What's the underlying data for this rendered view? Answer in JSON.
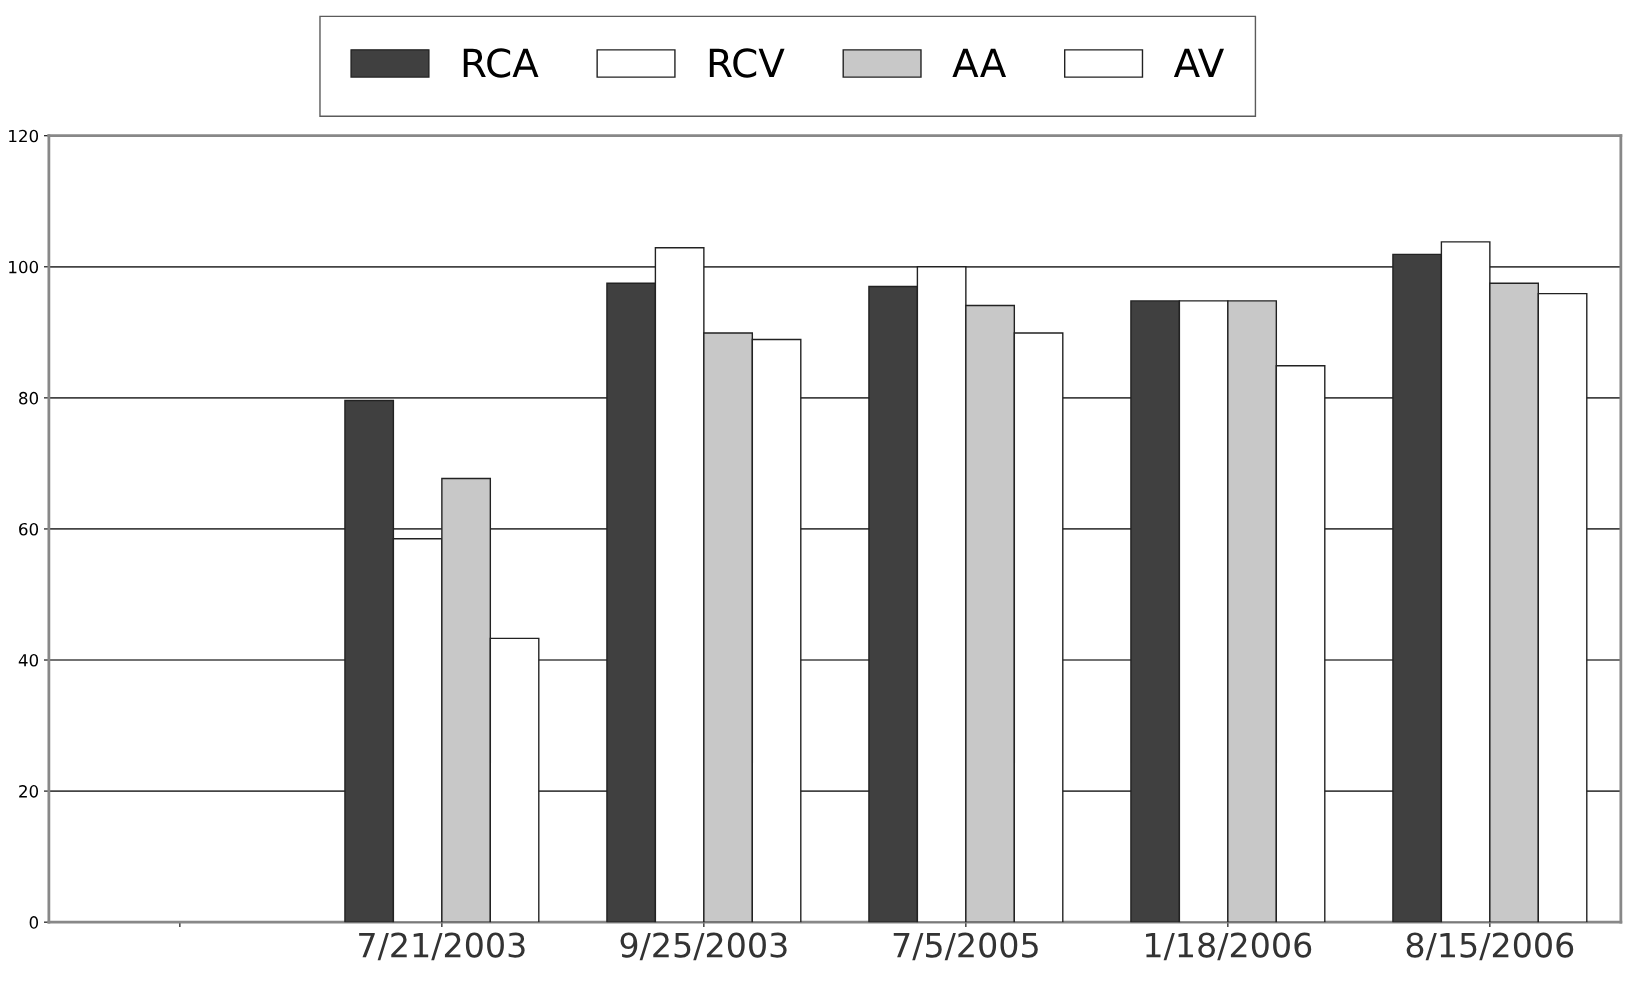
{
  "chart_data": {
    "type": "bar",
    "categories": [
      null,
      "7/21/2003",
      "9/25/2003",
      "7/5/2005",
      "1/18/2006",
      "8/15/2006"
    ],
    "series": [
      {
        "name": "RCA",
        "color": "#404040",
        "values": [
          null,
          79.6,
          97.5,
          97,
          94.8,
          101.9
        ]
      },
      {
        "name": "RCV",
        "color": "#ffffff",
        "values": [
          null,
          58.5,
          102.9,
          100,
          94.8,
          103.8
        ]
      },
      {
        "name": "AA",
        "color": "#c8c8c8",
        "values": [
          null,
          67.7,
          89.9,
          94.1,
          94.8,
          97.5
        ]
      },
      {
        "name": "AV",
        "color": "#ffffff",
        "values": [
          null,
          43.3,
          88.9,
          89.9,
          84.9,
          95.9
        ]
      }
    ],
    "ylim": [
      0,
      120
    ],
    "yticks": [
      0,
      20,
      40,
      60,
      80,
      100,
      120
    ],
    "grid": "y",
    "legend": "top"
  }
}
